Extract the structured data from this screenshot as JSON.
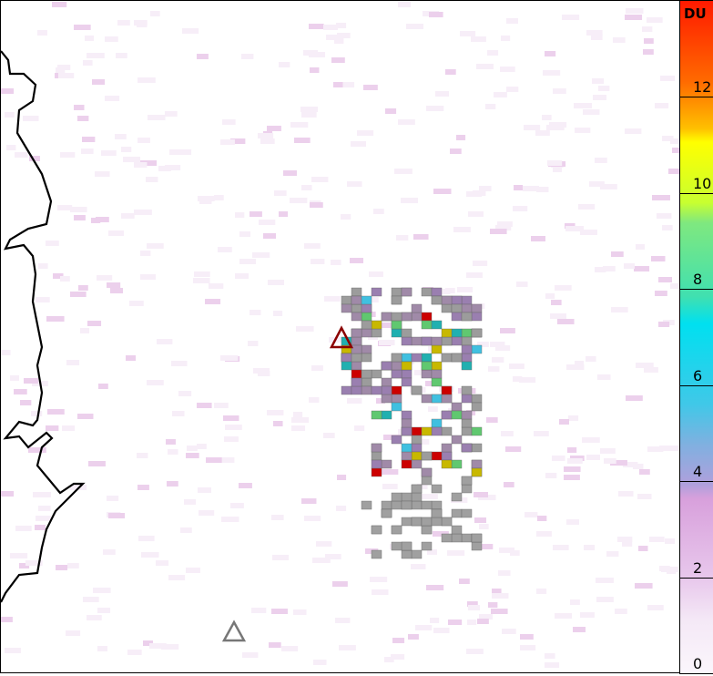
{
  "colorbar": {
    "unit": "DU",
    "min": 0,
    "max": 14,
    "ticks": [
      {
        "value": 0,
        "label": "0"
      },
      {
        "value": 2,
        "label": "2"
      },
      {
        "value": 4,
        "label": "4"
      },
      {
        "value": 6,
        "label": "6"
      },
      {
        "value": 8,
        "label": "8"
      },
      {
        "value": 10,
        "label": "10"
      },
      {
        "value": 12,
        "label": "12"
      }
    ]
  },
  "markers": [
    {
      "name": "active-volcano",
      "symbol": "triangle",
      "color": "#8b0000"
    },
    {
      "name": "volcano",
      "symbol": "triangle",
      "color": "#777777"
    }
  ],
  "colors": {
    "coastline": "#000000",
    "plume_low": "#8a8a8a",
    "plume_high": "#cc0000"
  }
}
